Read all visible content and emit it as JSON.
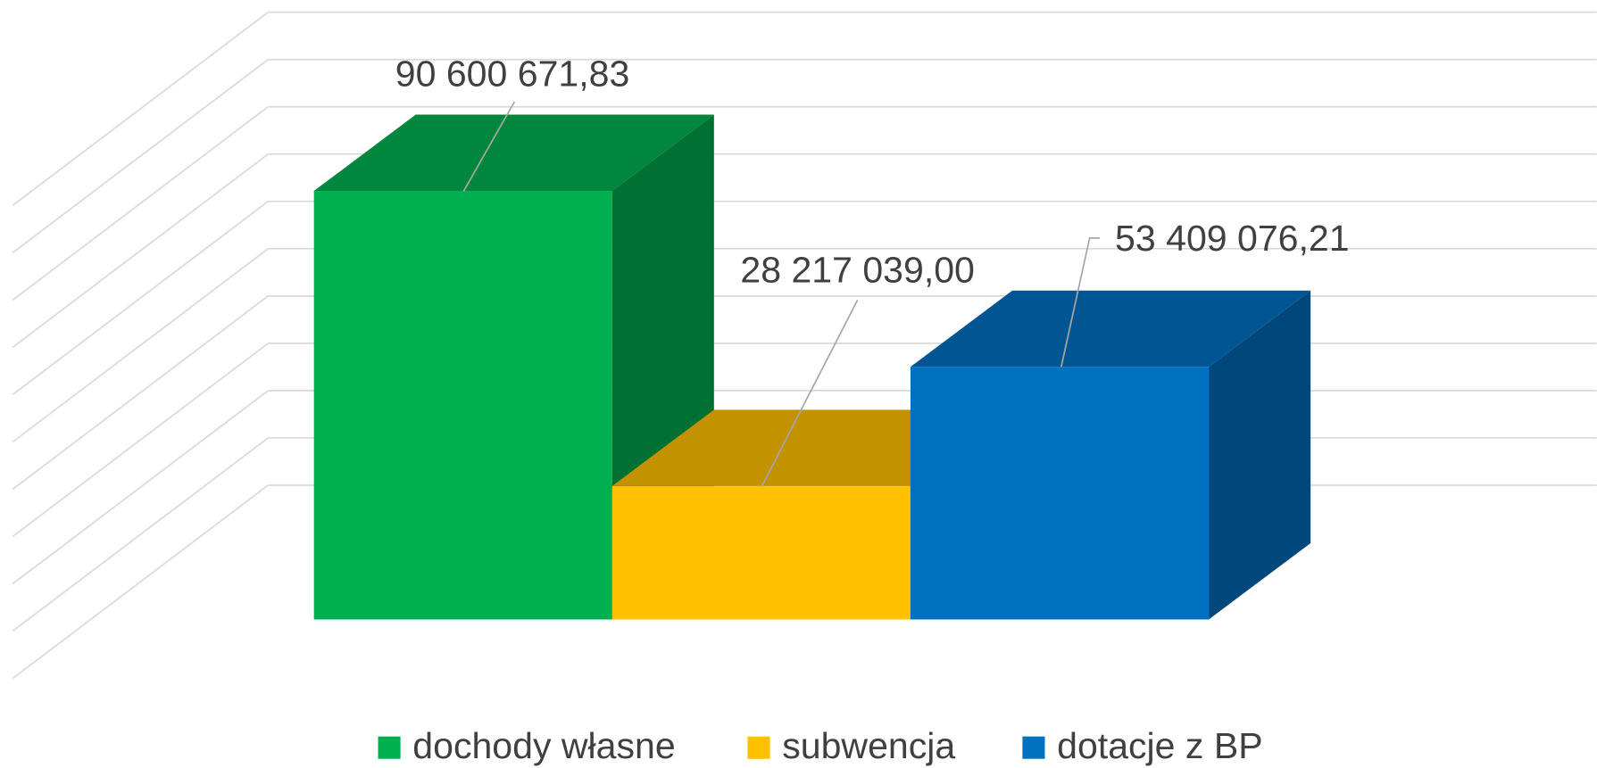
{
  "chart_data": {
    "type": "bar3d",
    "series": [
      {
        "name": "dochody własne",
        "color": "#00b050",
        "values": [
          90600671.83
        ],
        "value_labels": [
          "90 600 671,83"
        ]
      },
      {
        "name": "subwencja",
        "color": "#ffc000",
        "values": [
          28217039.0
        ],
        "value_labels": [
          "28 217 039,00"
        ]
      },
      {
        "name": "dotacje z BP",
        "color": "#0070c0",
        "values": [
          53409076.21
        ],
        "value_labels": [
          "53 409 076,21"
        ]
      }
    ],
    "ylim": [
      0,
      100000000
    ],
    "yticks": [
      0,
      10000000,
      20000000,
      30000000,
      40000000,
      50000000,
      60000000,
      70000000,
      80000000,
      90000000,
      100000000
    ],
    "grid": true,
    "legend": "bottom"
  }
}
